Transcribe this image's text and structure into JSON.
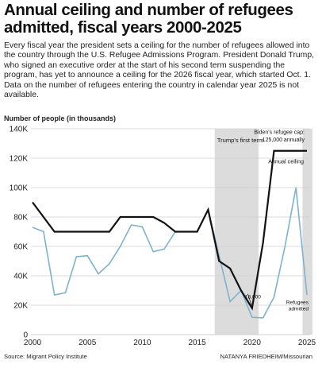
{
  "header": {
    "title": "Annual ceiling and number of refugees admitted, fiscal years 2000-2025",
    "subtitle": "Every fiscal year the president sets a ceiling for the number of refugees allowed into the country through the U.S. Refugee Admissions Program. President Donald Trump, who signed an executive order at the start of his second term suspending the program, has yet to announce a ceiling for the 2026 fiscal year, which started Oct. 1. Data on the number of refugees entering the country in calendar year 2025 is not available."
  },
  "footer": {
    "source": "Source: Migrant Policy Institute",
    "credit": "NATANYA FRIEDHEIM/Missourian"
  },
  "colors": {
    "ceiling": "#111111",
    "admitted": "#7fb2cc",
    "shade": "#dcdcdc",
    "grid": "#cfcfcf"
  },
  "chart_data": {
    "type": "line",
    "ylabel": "Number of people (in thousands)",
    "xlim": [
      2000,
      2025
    ],
    "ylim": [
      0,
      140000
    ],
    "x_ticks": [
      2000,
      2005,
      2010,
      2015,
      2020,
      2025
    ],
    "x_tick_labels": [
      "2000",
      "2005",
      "2010",
      "2015",
      "2020",
      "2025"
    ],
    "y_ticks": [
      0,
      20000,
      40000,
      60000,
      80000,
      100000,
      120000,
      140000
    ],
    "y_tick_labels": [
      "0",
      "20K",
      "40K",
      "60K",
      "80K",
      "100K",
      "120K",
      "140K"
    ],
    "grid": "horizontal",
    "shaded_regions": [
      {
        "start": 2016.6,
        "end": 2020.6,
        "label": "Trump's first term"
      },
      {
        "start": 2024.6,
        "end": 2025.5,
        "label": ""
      }
    ],
    "series": [
      {
        "name": "Annual ceiling",
        "color": "#111111",
        "x": [
          2000,
          2001,
          2002,
          2003,
          2004,
          2005,
          2006,
          2007,
          2008,
          2009,
          2010,
          2011,
          2012,
          2013,
          2014,
          2015,
          2016,
          2017,
          2018,
          2019,
          2020,
          2021,
          2022,
          2023,
          2024,
          2025
        ],
        "values": [
          90000,
          80000,
          70000,
          70000,
          70000,
          70000,
          70000,
          70000,
          80000,
          80000,
          80000,
          80000,
          76000,
          70000,
          70000,
          70000,
          85000,
          50000,
          45000,
          30000,
          18000,
          62500,
          125000,
          125000,
          125000,
          125000
        ]
      },
      {
        "name": "Refugees admitted",
        "color": "#7fb2cc",
        "x": [
          2000,
          2001,
          2002,
          2003,
          2004,
          2005,
          2006,
          2007,
          2008,
          2009,
          2010,
          2011,
          2012,
          2013,
          2014,
          2015,
          2016,
          2017,
          2018,
          2019,
          2020,
          2021,
          2022,
          2023,
          2024,
          2025
        ],
        "values": [
          73000,
          70000,
          27000,
          28500,
          53000,
          53700,
          41300,
          48200,
          60100,
          74600,
          73300,
          56400,
          58200,
          69900,
          69900,
          70000,
          84900,
          53700,
          22500,
          30000,
          11800,
          11400,
          25500,
          60000,
          100000,
          27000
        ]
      }
    ],
    "annotations": [
      {
        "text": "Biden's refugee cap:",
        "x": 2025,
        "y": 138000
      },
      {
        "text": "125,000 annually",
        "x": 2025,
        "y": 133000
      },
      {
        "text": "Annual ceiling",
        "x": 2025,
        "y": 118000
      },
      {
        "text": "18,000",
        "x": 2020,
        "y": 18000
      },
      {
        "text": "Refugees",
        "x": 2025,
        "y": 22500
      },
      {
        "text": "admitted",
        "x": 2025,
        "y": 18000
      }
    ]
  }
}
